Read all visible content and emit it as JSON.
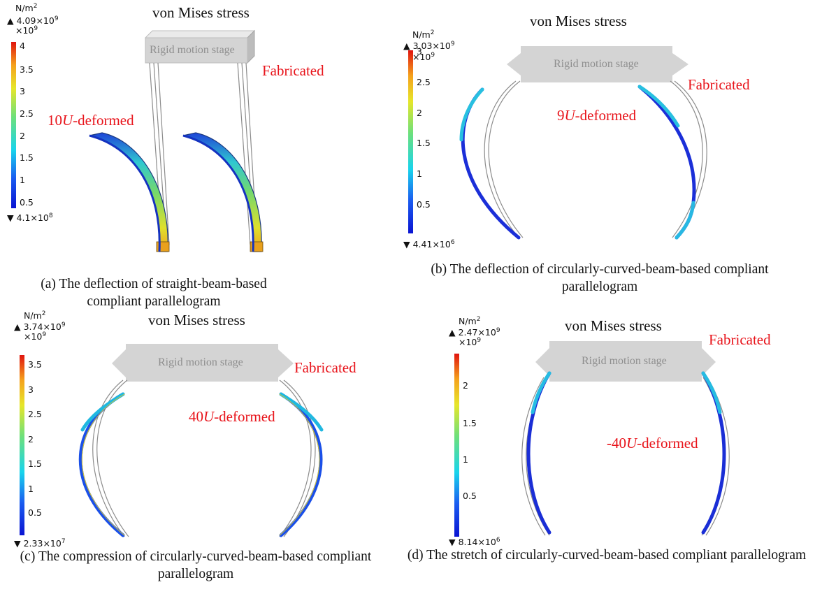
{
  "panels": {
    "a": {
      "title": "von Mises stress",
      "unit_base": "N/m",
      "unit_exp": "2",
      "max_label": "4.09×10",
      "max_exp": "9",
      "scale_base": "×10",
      "scale_exp": "9",
      "min_label": "4.1×10",
      "min_exp": "8",
      "ticks": [
        "4",
        "3.5",
        "3",
        "2.5",
        "2",
        "1.5",
        "1",
        "0.5"
      ],
      "stage_label": "Rigid motion stage",
      "fabricated_label": "Fabricated",
      "deformed_prefix": "10",
      "deformed_var": "U",
      "deformed_suffix": "-deformed",
      "caption": "(a) The deflection of straight-beam-based compliant parallelogram"
    },
    "b": {
      "title": "von Mises stress",
      "unit_base": "N/m",
      "unit_exp": "2",
      "max_label": "3.03×10",
      "max_exp": "9",
      "scale_base": "×10",
      "scale_exp": "9",
      "min_label": "4.41×10",
      "min_exp": "6",
      "ticks": [
        "3",
        "2.5",
        "2",
        "1.5",
        "1",
        "0.5"
      ],
      "stage_label": "Rigid motion stage",
      "fabricated_label": "Fabricated",
      "deformed_prefix": "9",
      "deformed_var": "U",
      "deformed_suffix": "-deformed",
      "caption": "(b) The deflection of circularly-curved-beam-based compliant parallelogram"
    },
    "c": {
      "title": "von Mises stress",
      "unit_base": "N/m",
      "unit_exp": "2",
      "max_label": "3.74×10",
      "max_exp": "9",
      "scale_base": "×10",
      "scale_exp": "9",
      "min_label": "2.33×10",
      "min_exp": "7",
      "ticks": [
        "3.5",
        "3",
        "2.5",
        "2",
        "1.5",
        "1",
        "0.5"
      ],
      "stage_label": "Rigid motion stage",
      "fabricated_label": "Fabricated",
      "deformed_prefix": "40",
      "deformed_var": "U",
      "deformed_suffix": "-deformed",
      "caption": "(c) The compression of circularly-curved-beam-based compliant parallelogram"
    },
    "d": {
      "title": "von Mises stress",
      "unit_base": "N/m",
      "unit_exp": "2",
      "max_label": "2.47×10",
      "max_exp": "9",
      "scale_base": "×10",
      "scale_exp": "9",
      "min_label": "8.14×10",
      "min_exp": "6",
      "ticks": [
        "2",
        "1.5",
        "1",
        "0.5"
      ],
      "stage_label": "Rigid motion stage",
      "fabricated_label": "Fabricated",
      "deformed_prefix": "-40",
      "deformed_var": "U",
      "deformed_suffix": "-deformed",
      "caption": "(d) The stretch of circularly-curved-beam-based compliant parallelogram"
    }
  },
  "colors": {
    "annotation_red": "#e8141b",
    "stage_gray": "#d4d4d4",
    "stage_text": "#8e8e8e",
    "beam_outline": "#8c8c8c",
    "stress_low": "#0a1ad8",
    "stress_high": "#e21a12"
  }
}
